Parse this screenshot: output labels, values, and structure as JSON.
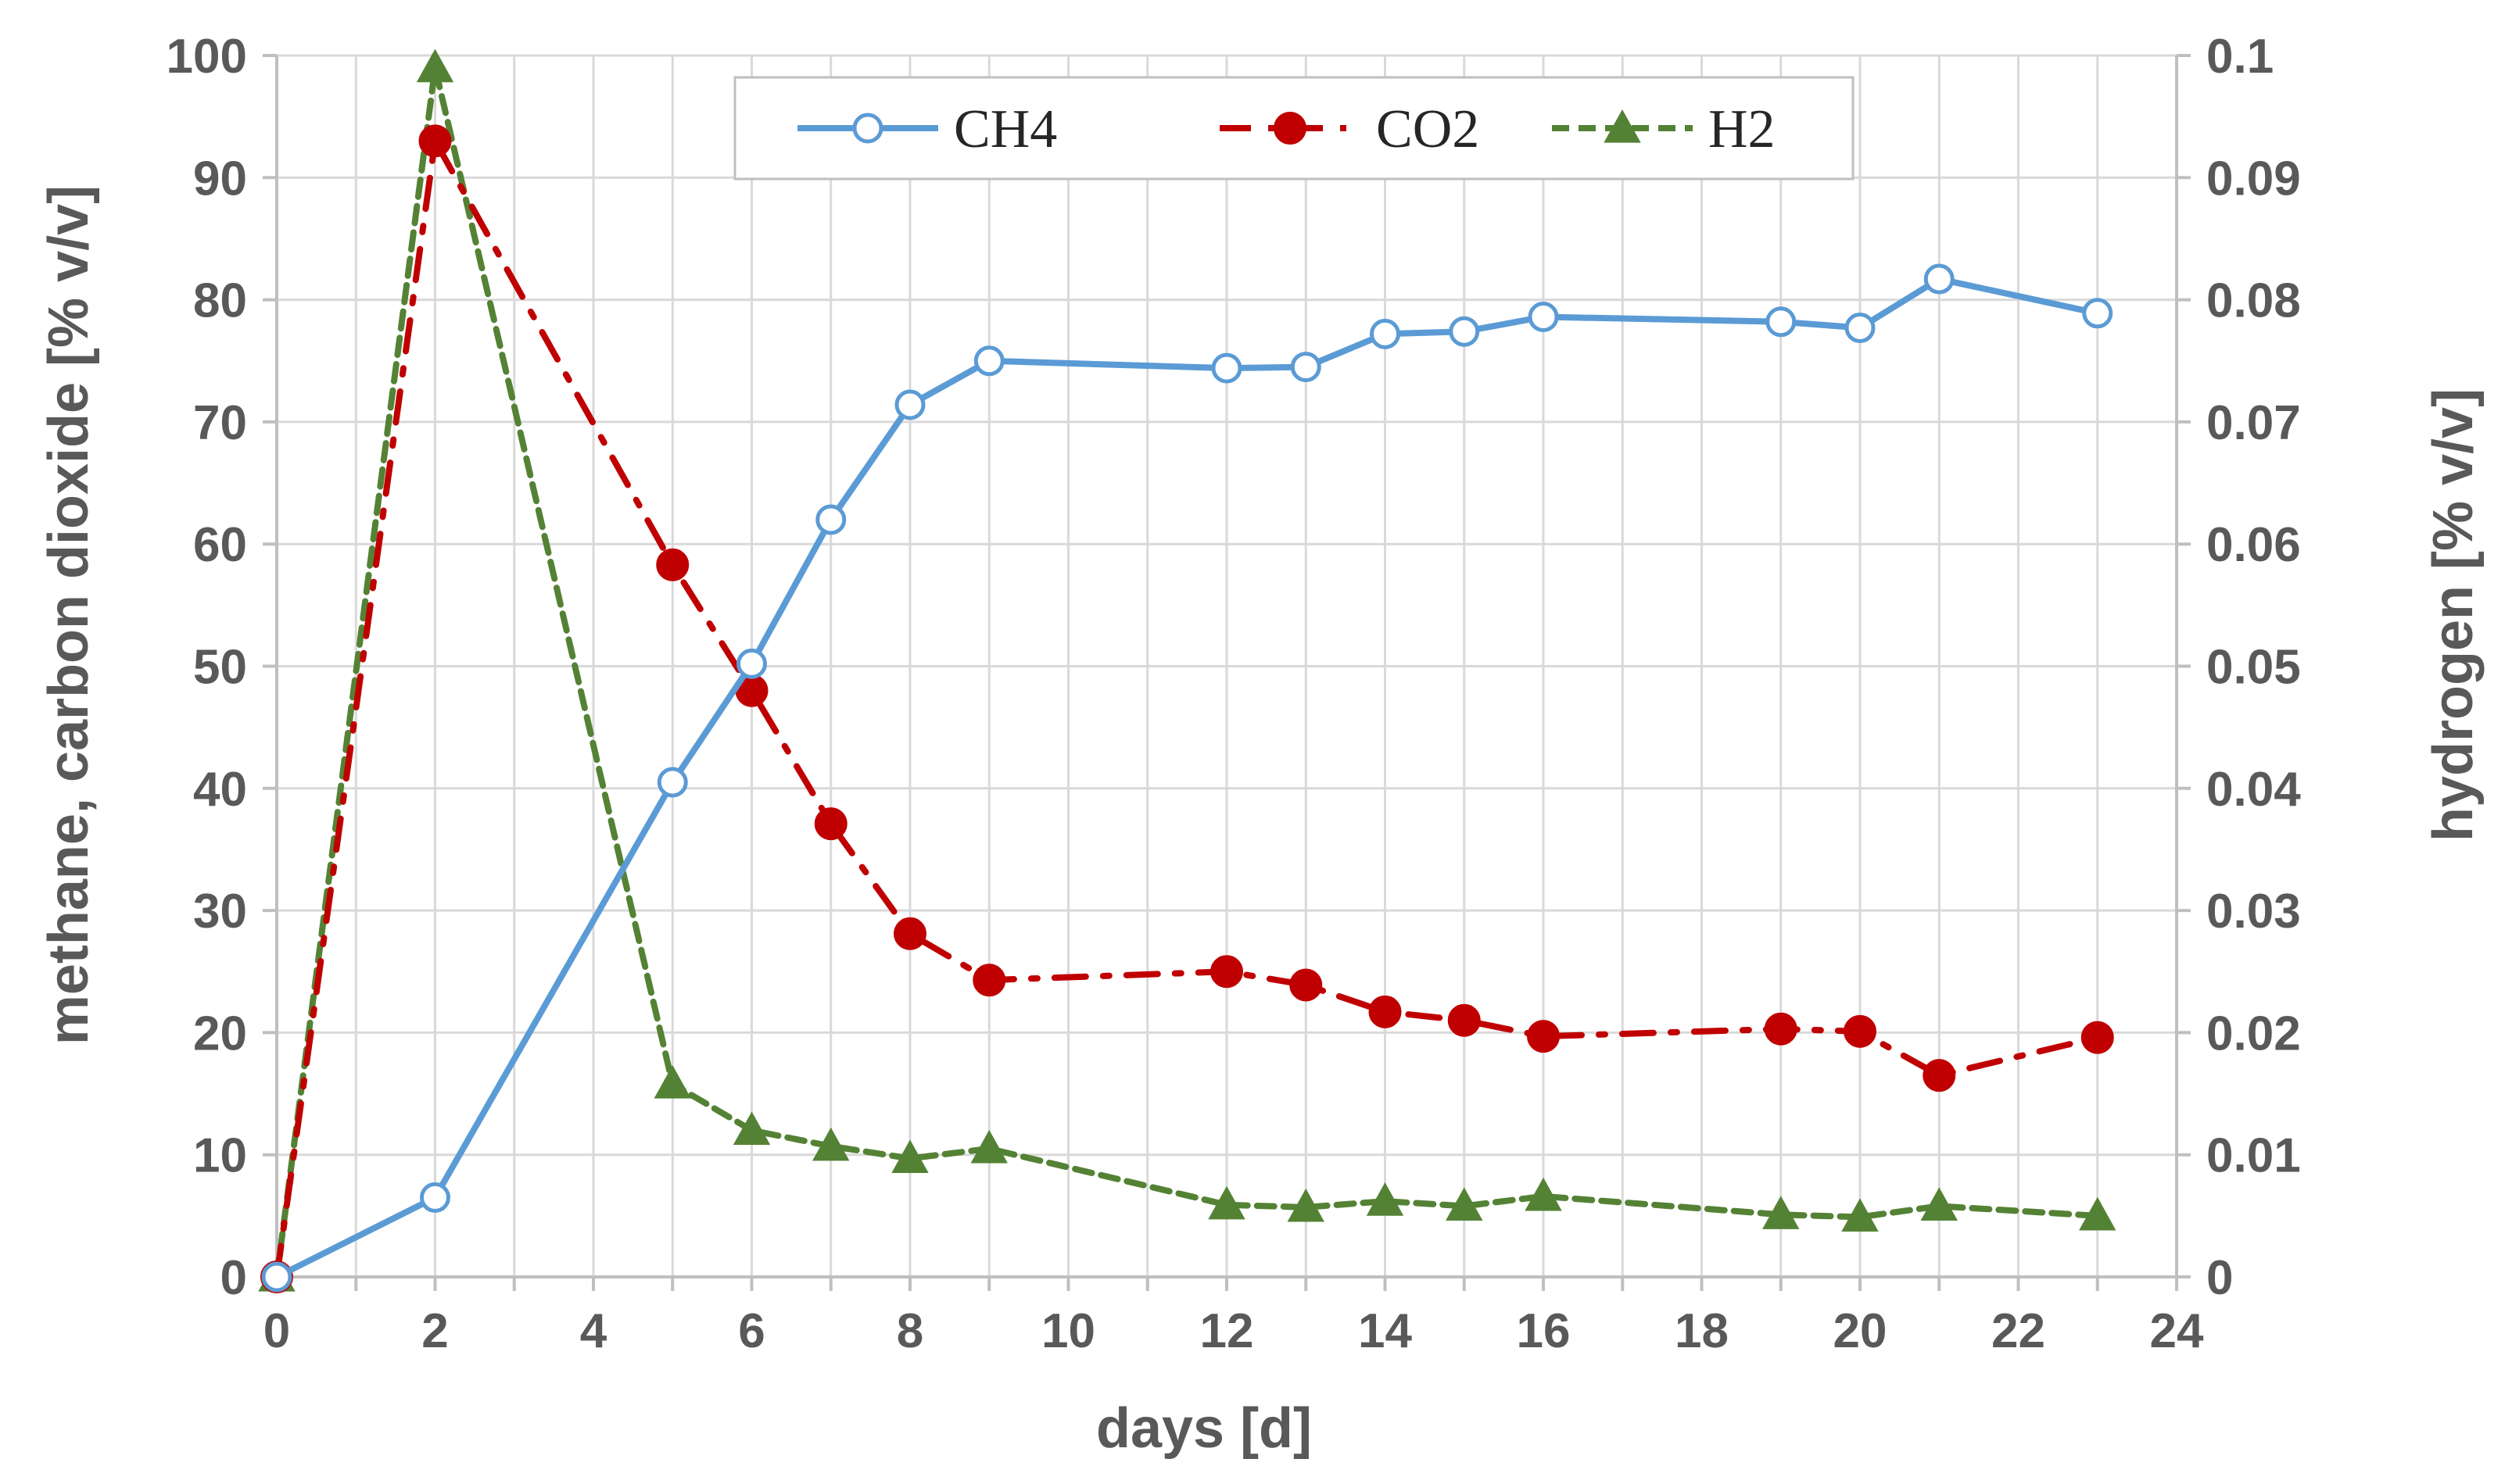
{
  "chart_data": {
    "type": "line",
    "xlabel": "days [d]",
    "ylabel": "methane, carbon dioxide [% v/v]",
    "y2label": "hydrogen [% v/v]",
    "xlim": [
      0,
      24
    ],
    "ylim": [
      0,
      100
    ],
    "y2lim": [
      0,
      0.1
    ],
    "x_ticks": [
      "0",
      "2",
      "4",
      "6",
      "8",
      "10",
      "12",
      "14",
      "16",
      "18",
      "20",
      "22",
      "24"
    ],
    "y_ticks": [
      "0",
      "10",
      "20",
      "30",
      "40",
      "50",
      "60",
      "70",
      "80",
      "90",
      "100"
    ],
    "y2_ticks": [
      "0",
      "0.01",
      "0.02",
      "0.03",
      "0.04",
      "0.05",
      "0.06",
      "0.07",
      "0.08",
      "0.09",
      "0.1"
    ],
    "grid": true,
    "legend_position": "top-center",
    "series": [
      {
        "name": "CH4",
        "axis": "left",
        "color": "#5b9bd5",
        "line_style": "solid",
        "marker": "open-circle",
        "x": [
          0,
          2,
          5,
          6,
          7,
          8,
          9,
          12,
          13,
          14,
          15,
          16,
          19,
          20,
          21,
          23
        ],
        "values": [
          0,
          6.5,
          40.5,
          50.2,
          62.0,
          71.4,
          75.0,
          74.4,
          74.5,
          77.2,
          77.4,
          78.6,
          78.2,
          77.7,
          81.7,
          78.9
        ]
      },
      {
        "name": "CO2",
        "axis": "left",
        "color": "#c00000",
        "line_style": "dash-dot",
        "marker": "filled-circle",
        "x": [
          0,
          2,
          5,
          6,
          7,
          8,
          9,
          12,
          13,
          14,
          15,
          16,
          19,
          20,
          21,
          23
        ],
        "values": [
          0,
          93.0,
          58.3,
          48.0,
          37.1,
          28.1,
          24.3,
          25.0,
          23.9,
          21.7,
          21.0,
          19.7,
          20.3,
          20.1,
          16.5,
          19.6
        ]
      },
      {
        "name": "H2",
        "axis": "right",
        "color": "#548235",
        "line_style": "dashed",
        "marker": "filled-triangle",
        "x": [
          0,
          2,
          5,
          6,
          7,
          8,
          9,
          12,
          13,
          14,
          15,
          16,
          19,
          20,
          21,
          23
        ],
        "values": [
          0,
          0.099,
          0.0158,
          0.012,
          0.0107,
          0.0097,
          0.0105,
          0.0059,
          0.0057,
          0.0062,
          0.0058,
          0.0066,
          0.0051,
          0.0049,
          0.0058,
          0.005
        ]
      }
    ]
  }
}
